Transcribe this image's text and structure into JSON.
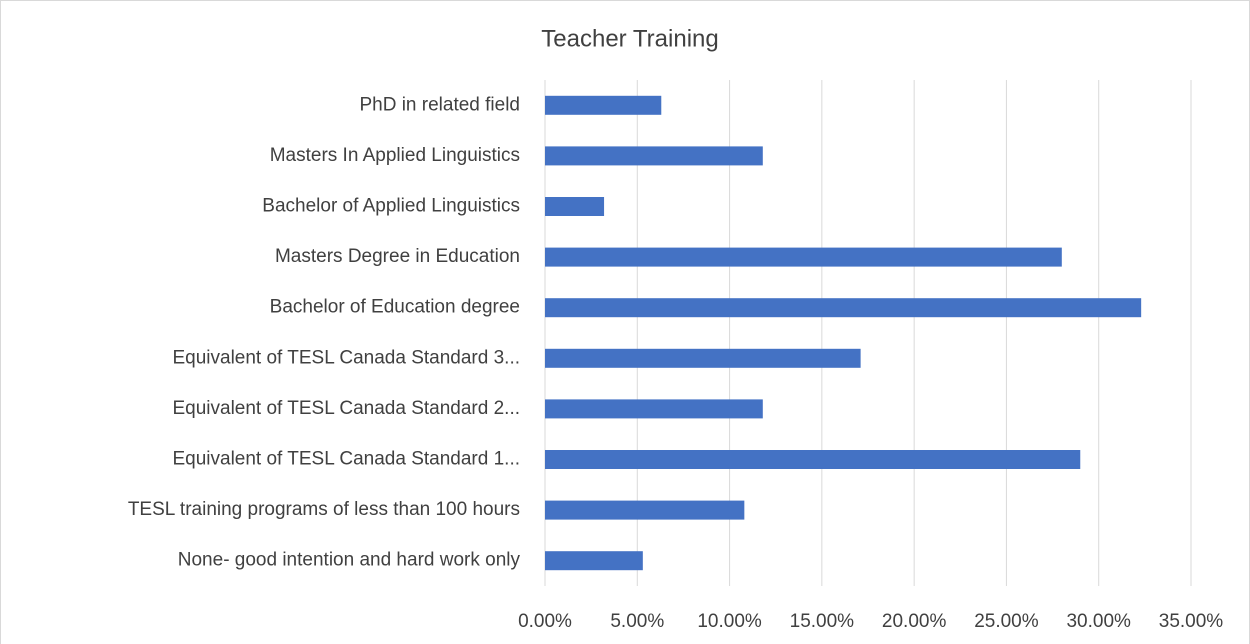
{
  "chart_data": {
    "type": "barh",
    "title": "Teacher Training",
    "categories": [
      "PhD in related field",
      "Masters In Applied Linguistics",
      "Bachelor of Applied Linguistics",
      "Masters Degree in Education",
      "Bachelor of Education degree",
      "Equivalent of TESL Canada Standard 3...",
      "Equivalent of TESL Canada Standard 2...",
      "Equivalent of TESL Canada Standard 1...",
      "TESL training programs of less than 100 hours",
      "None- good intention and hard work only"
    ],
    "values": [
      6.3,
      11.8,
      3.2,
      28.0,
      32.3,
      17.1,
      11.8,
      29.0,
      10.8,
      5.3
    ],
    "color": "#4472c4",
    "xlim": [
      0,
      35
    ],
    "xticks": [
      {
        "value": 0,
        "label": "0.00%"
      },
      {
        "value": 5,
        "label": "5.00%"
      },
      {
        "value": 10,
        "label": "10.00%"
      },
      {
        "value": 15,
        "label": "15.00%"
      },
      {
        "value": 20,
        "label": "20.00%"
      },
      {
        "value": 25,
        "label": "25.00%"
      },
      {
        "value": 30,
        "label": "30.00%"
      },
      {
        "value": 35,
        "label": "35.00%"
      }
    ],
    "grid": true
  }
}
